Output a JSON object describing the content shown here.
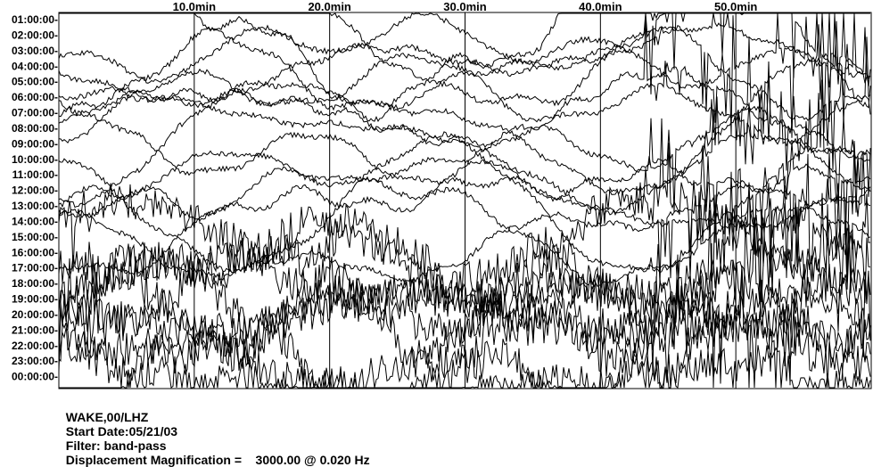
{
  "chart_data": {
    "type": "line",
    "title": "",
    "x_ticks": [
      "10.0min",
      "20.0min",
      "30.0min",
      "40.0min",
      "50.0min"
    ],
    "x_tick_values": [
      10,
      20,
      30,
      40,
      50
    ],
    "x_range_min": [
      0,
      60
    ],
    "y_ticks": [
      "01:00:00-",
      "02:00:00-",
      "03:00:00-",
      "04:00:00-",
      "05:00:00-",
      "06:00:00-",
      "07:00:00-",
      "08:00:00-",
      "09:00:00-",
      "10:00:00-",
      "11:00:00-",
      "12:00:00-",
      "13:00:00-",
      "14:00:00-",
      "15:00:00-",
      "16:00:00-",
      "17:00:00-",
      "18:00:00-",
      "19:00:00-",
      "20:00:00-",
      "21:00:00-",
      "22:00:00-",
      "23:00:00-",
      "00:00:00-"
    ],
    "grid_x": true,
    "traces_count": 24
  },
  "footer": {
    "station": "WAKE,00/LHZ",
    "start_date": "Start Date:05/21/03",
    "filter": "Filter: band-pass",
    "magnification": "Displacement Magnification =    3000.00 @ 0.020 Hz"
  }
}
